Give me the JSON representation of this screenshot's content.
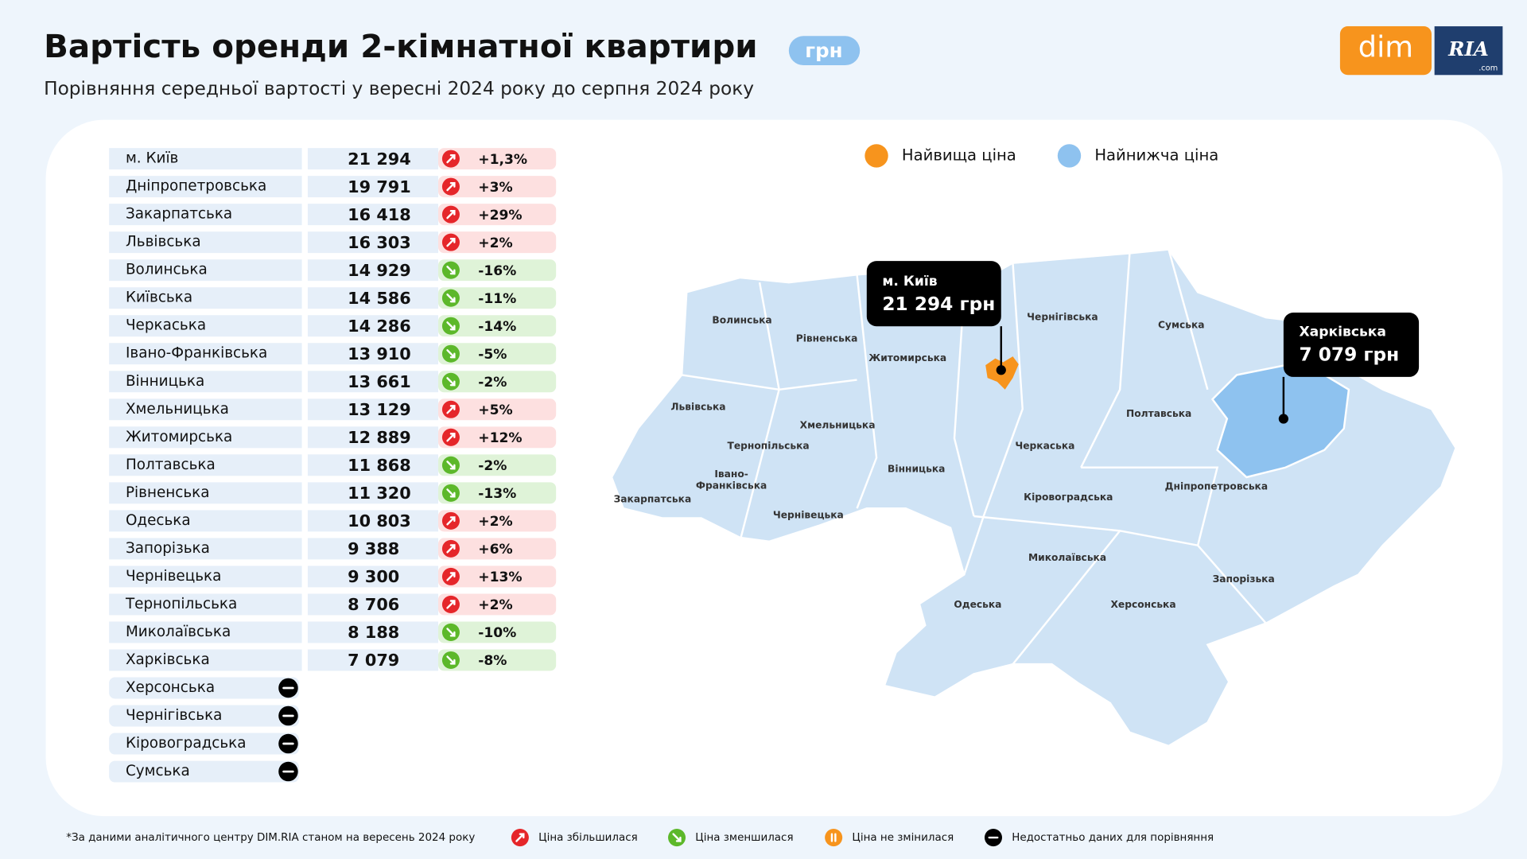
{
  "header": {
    "title": "Вартість оренди 2-кімнатної квартири",
    "unit_badge": "грн",
    "subtitle": "Порівняння середньої вартості у вересні 2024 року до серпня 2024 року",
    "logo": {
      "left": "dim",
      "right": "RIA",
      "suffix": ".com"
    }
  },
  "table": {
    "rows": [
      {
        "region": "м. Київ",
        "price": "21 294",
        "change": "+1,3%"
      },
      {
        "region": "Дніпропетровська",
        "price": "19 791",
        "change": "+3%"
      },
      {
        "region": "Закарпатська",
        "price": "16 418",
        "change": "+29%"
      },
      {
        "region": "Львівська",
        "price": "16 303",
        "change": "+2%"
      },
      {
        "region": "Волинська",
        "price": "14 929",
        "change": "-16%"
      },
      {
        "region": "Київська",
        "price": "14 586",
        "change": "-11%"
      },
      {
        "region": "Черкаська",
        "price": "14 286",
        "change": "-14%"
      },
      {
        "region": "Івано-Франківська",
        "price": "13 910",
        "change": "-5%"
      },
      {
        "region": "Вінницька",
        "price": "13 661",
        "change": "-2%"
      },
      {
        "region": "Хмельницька",
        "price": "13 129",
        "change": "+5%"
      },
      {
        "region": "Житомирська",
        "price": "12 889",
        "change": "+12%"
      },
      {
        "region": "Полтавська",
        "price": "11 868",
        "change": "-2%"
      },
      {
        "region": "Рівненська",
        "price": "11 320",
        "change": "-13%"
      },
      {
        "region": "Одеська",
        "price": "10 803",
        "change": "+2%"
      },
      {
        "region": "Запорізька",
        "price": "9 388",
        "change": "+6%"
      },
      {
        "region": "Чернівецька",
        "price": "9 300",
        "change": "+13%"
      },
      {
        "region": "Тернопільська",
        "price": "8 706",
        "change": "+2%"
      },
      {
        "region": "Миколаївська",
        "price": "8 188",
        "change": "-10%"
      },
      {
        "region": "Харківська",
        "price": "7 079",
        "change": "-8%"
      },
      {
        "region": "Херсонська"
      },
      {
        "region": "Чернігівська"
      },
      {
        "region": "Кіровоградська"
      },
      {
        "region": "Сумська"
      }
    ]
  },
  "map": {
    "legend": [
      "Найвища ціна",
      "Найнижча ціна"
    ],
    "labels": [
      "Волинська",
      "Рівненська",
      "Житомирська",
      "Чернігівська",
      "Сумська",
      "Львівська",
      "Хмельницька",
      "Тернопільська",
      "Полтавська",
      "Черкаська",
      "Вінницька",
      "Івано-",
      "Франківська",
      "Закарпатська",
      "Чернівецька",
      "Дніпропетровська",
      "Кіровоградська",
      "Миколаївська",
      "Одеська",
      "Запорізька",
      "Херсонська"
    ],
    "callouts": [
      {
        "label": "м. Київ",
        "value": "21 294 грн"
      },
      {
        "label": "Харківська",
        "value": "7 079 грн"
      }
    ]
  },
  "footer": {
    "note": "*За даними аналітичного центру DIM.RIA станом на вересень 2024 року",
    "legend": [
      "Ціна збільшилася",
      "Ціна зменшилася",
      "Ціна не змінилася",
      "Недостатньо даних для порівняння"
    ]
  }
}
